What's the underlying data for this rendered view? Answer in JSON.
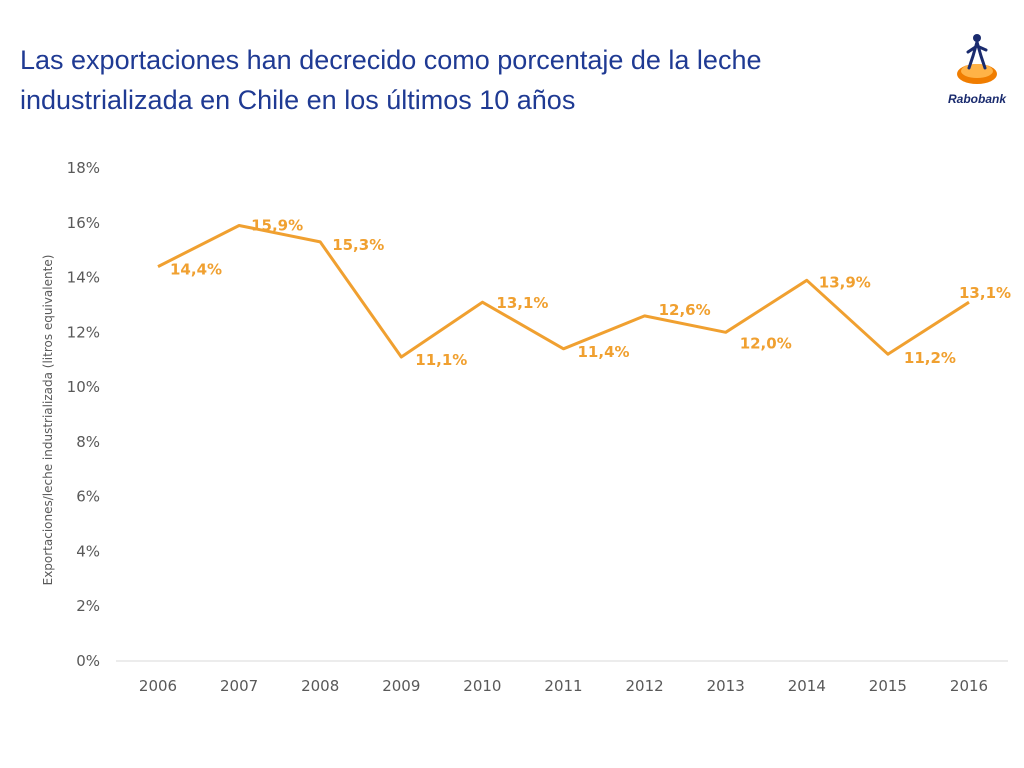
{
  "title": "Las exportaciones han decrecido como porcentaje de la leche industrializada en Chile en los últimos 10 años",
  "logo": {
    "text": "Rabobank",
    "icon": "rabobank-logo-icon"
  },
  "colors": {
    "title": "#1f3a93",
    "line": "#f0a030",
    "axis": "#d9d9d9",
    "tick": "#595959"
  },
  "chart_data": {
    "type": "line",
    "title": "",
    "xlabel": "",
    "ylabel": "Exportaciones/leche industrializada  (litros equivalente)",
    "categories": [
      "2006",
      "2007",
      "2008",
      "2009",
      "2010",
      "2011",
      "2012",
      "2013",
      "2014",
      "2015",
      "2016"
    ],
    "series": [
      {
        "values": [
          14.4,
          15.9,
          15.3,
          11.1,
          13.1,
          11.4,
          12.6,
          12.0,
          13.9,
          11.2,
          13.1
        ]
      }
    ],
    "data_labels": [
      "14,4%",
      "15,9%",
      "15,3%",
      "11,1%",
      "13,1%",
      "11,4%",
      "12,6%",
      "12,0%",
      "13,9%",
      "11,2%",
      "13,1%"
    ],
    "yticks": [
      "0%",
      "2%",
      "4%",
      "6%",
      "8%",
      "10%",
      "12%",
      "14%",
      "16%",
      "18%"
    ],
    "ylim": [
      0,
      18
    ],
    "grid": false,
    "legend": "none"
  }
}
